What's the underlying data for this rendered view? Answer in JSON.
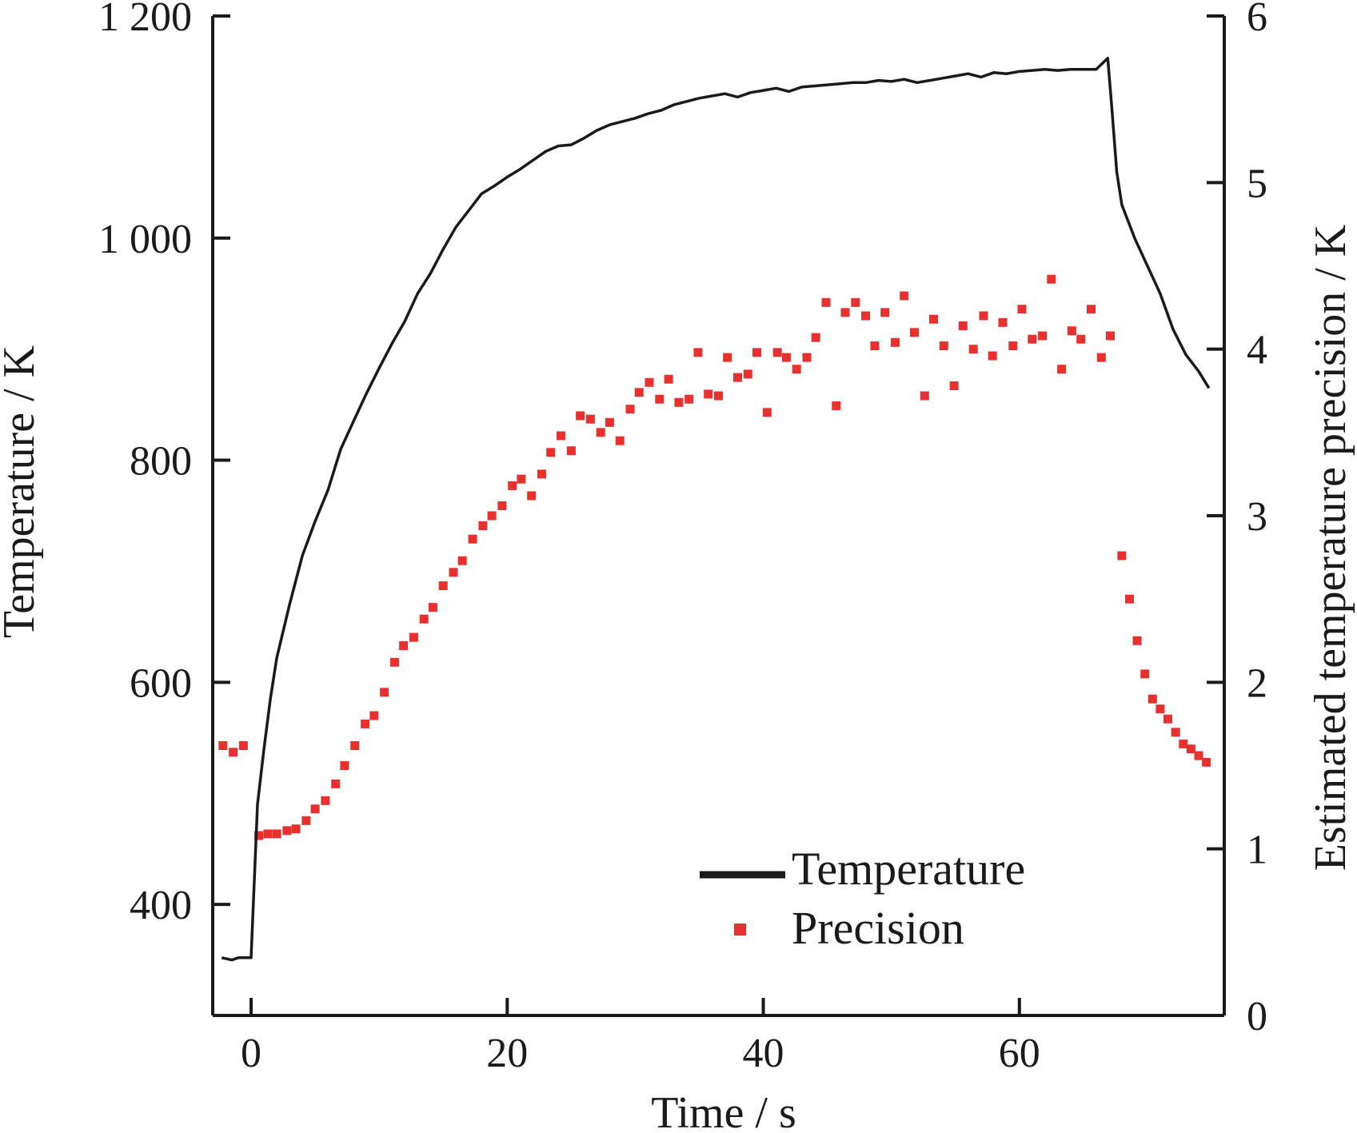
{
  "chart_data": {
    "type": "line",
    "xlabel": "Time / s",
    "ylabel_left": "Temperature / K",
    "ylabel_right": "Estimated temperature precision / K",
    "xlim": [
      -3,
      76
    ],
    "ylim_left": [
      300,
      1200
    ],
    "ylim_right": [
      0,
      6
    ],
    "x_ticks": [
      0,
      20,
      40,
      60
    ],
    "x_tick_labels": [
      "0",
      "20",
      "40",
      "60"
    ],
    "y_left_ticks": [
      400,
      600,
      800,
      1000,
      1200
    ],
    "y_left_tick_labels": [
      "400",
      "600",
      "800",
      "1 000",
      "1 200"
    ],
    "y_right_ticks": [
      0,
      1,
      2,
      3,
      4,
      5,
      6
    ],
    "y_right_tick_labels": [
      "0",
      "1",
      "2",
      "3",
      "4",
      "5",
      "6"
    ],
    "grid": false,
    "legend_position": "bottom-right",
    "legend_items": [
      "Temperature",
      "Precision"
    ],
    "colors": {
      "temperature": "#1a1a1a",
      "precision": "#e8312f"
    },
    "series": [
      {
        "name": "Temperature",
        "axis": "left",
        "style": "line",
        "x": [
          -2.3,
          -1.5,
          -1,
          0,
          0.5,
          1,
          1.5,
          2,
          3,
          4,
          5,
          6,
          7,
          8,
          9,
          10,
          11,
          12,
          13,
          14,
          15,
          16,
          17,
          18,
          19,
          20,
          21,
          22,
          23,
          24,
          25,
          26,
          27,
          28,
          29,
          30,
          31,
          32,
          33,
          34,
          35,
          36,
          37,
          38,
          39,
          40,
          41,
          42,
          43,
          44,
          45,
          46,
          47,
          48,
          49,
          50,
          51,
          52,
          53,
          54,
          55,
          56,
          57,
          58,
          59,
          60,
          61,
          62,
          63,
          64,
          65,
          66,
          66.9,
          67.2,
          67.6,
          68,
          68.5,
          69,
          70,
          71,
          72,
          73,
          74,
          74.8
        ],
        "y": [
          352,
          350,
          352,
          352,
          490,
          540,
          585,
          622,
          670,
          714,
          745,
          773,
          810,
          835,
          860,
          883,
          905,
          925,
          950,
          968,
          990,
          1010,
          1025,
          1040,
          1047,
          1055,
          1062,
          1070,
          1078,
          1083,
          1084,
          1090,
          1097,
          1102,
          1105,
          1108,
          1112,
          1115,
          1120,
          1123,
          1126,
          1128,
          1130,
          1127,
          1131,
          1133,
          1135,
          1132,
          1136,
          1137,
          1138,
          1139,
          1140,
          1140,
          1142,
          1141,
          1143,
          1140,
          1142,
          1144,
          1146,
          1148,
          1145,
          1149,
          1148,
          1150,
          1151,
          1152,
          1151,
          1152,
          1152,
          1152,
          1162,
          1120,
          1060,
          1030,
          1015,
          1000,
          975,
          950,
          918,
          895,
          880,
          865
        ]
      },
      {
        "name": "Precision",
        "axis": "right",
        "style": "points",
        "x": [
          -2.2,
          -1.4,
          -0.6,
          0.6,
          1.3,
          2,
          2.8,
          3.5,
          4.3,
          5,
          5.8,
          6.6,
          7.3,
          8.1,
          8.9,
          9.6,
          10.4,
          11.2,
          11.9,
          12.7,
          13.5,
          14.2,
          15,
          15.8,
          16.5,
          17.3,
          18.1,
          18.8,
          19.6,
          20.4,
          21.1,
          21.9,
          22.7,
          23.4,
          24.2,
          25,
          25.7,
          26.5,
          27.3,
          28,
          28.8,
          29.6,
          30.3,
          31.1,
          31.9,
          32.6,
          33.4,
          34.2,
          34.9,
          35.7,
          36.5,
          37.2,
          38,
          38.8,
          39.5,
          40.3,
          41.1,
          41.8,
          42.6,
          43.4,
          44.1,
          44.9,
          45.7,
          46.4,
          47.2,
          48,
          48.7,
          49.5,
          50.3,
          51,
          51.8,
          52.6,
          53.3,
          54.1,
          54.9,
          55.6,
          56.4,
          57.2,
          57.9,
          58.7,
          59.5,
          60.2,
          61,
          61.8,
          62.5,
          63.3,
          64.1,
          64.8,
          65.6,
          66.4,
          67.1,
          68,
          68.6,
          69.2,
          69.8,
          70.4,
          71,
          71.6,
          72.2,
          72.8,
          73.4,
          74,
          74.6
        ],
        "y": [
          1.62,
          1.58,
          1.62,
          1.08,
          1.09,
          1.09,
          1.11,
          1.12,
          1.17,
          1.24,
          1.29,
          1.39,
          1.5,
          1.62,
          1.75,
          1.8,
          1.94,
          2.12,
          2.22,
          2.27,
          2.38,
          2.45,
          2.58,
          2.66,
          2.73,
          2.86,
          2.94,
          3,
          3.06,
          3.18,
          3.22,
          3.12,
          3.25,
          3.38,
          3.48,
          3.39,
          3.6,
          3.58,
          3.5,
          3.56,
          3.45,
          3.64,
          3.74,
          3.8,
          3.7,
          3.82,
          3.68,
          3.7,
          3.98,
          3.73,
          3.72,
          3.95,
          3.83,
          3.85,
          3.98,
          3.62,
          3.98,
          3.95,
          3.88,
          3.95,
          4.07,
          4.28,
          3.66,
          4.22,
          4.28,
          4.2,
          4.02,
          4.22,
          4.04,
          4.32,
          4.1,
          3.72,
          4.18,
          4.02,
          3.78,
          4.14,
          4,
          4.2,
          3.96,
          4.16,
          4.02,
          4.24,
          4.06,
          4.08,
          4.42,
          3.88,
          4.11,
          4.06,
          4.24,
          3.95,
          4.08,
          2.76,
          2.5,
          2.25,
          2.05,
          1.9,
          1.84,
          1.78,
          1.7,
          1.63,
          1.6,
          1.56,
          1.52
        ]
      }
    ]
  }
}
